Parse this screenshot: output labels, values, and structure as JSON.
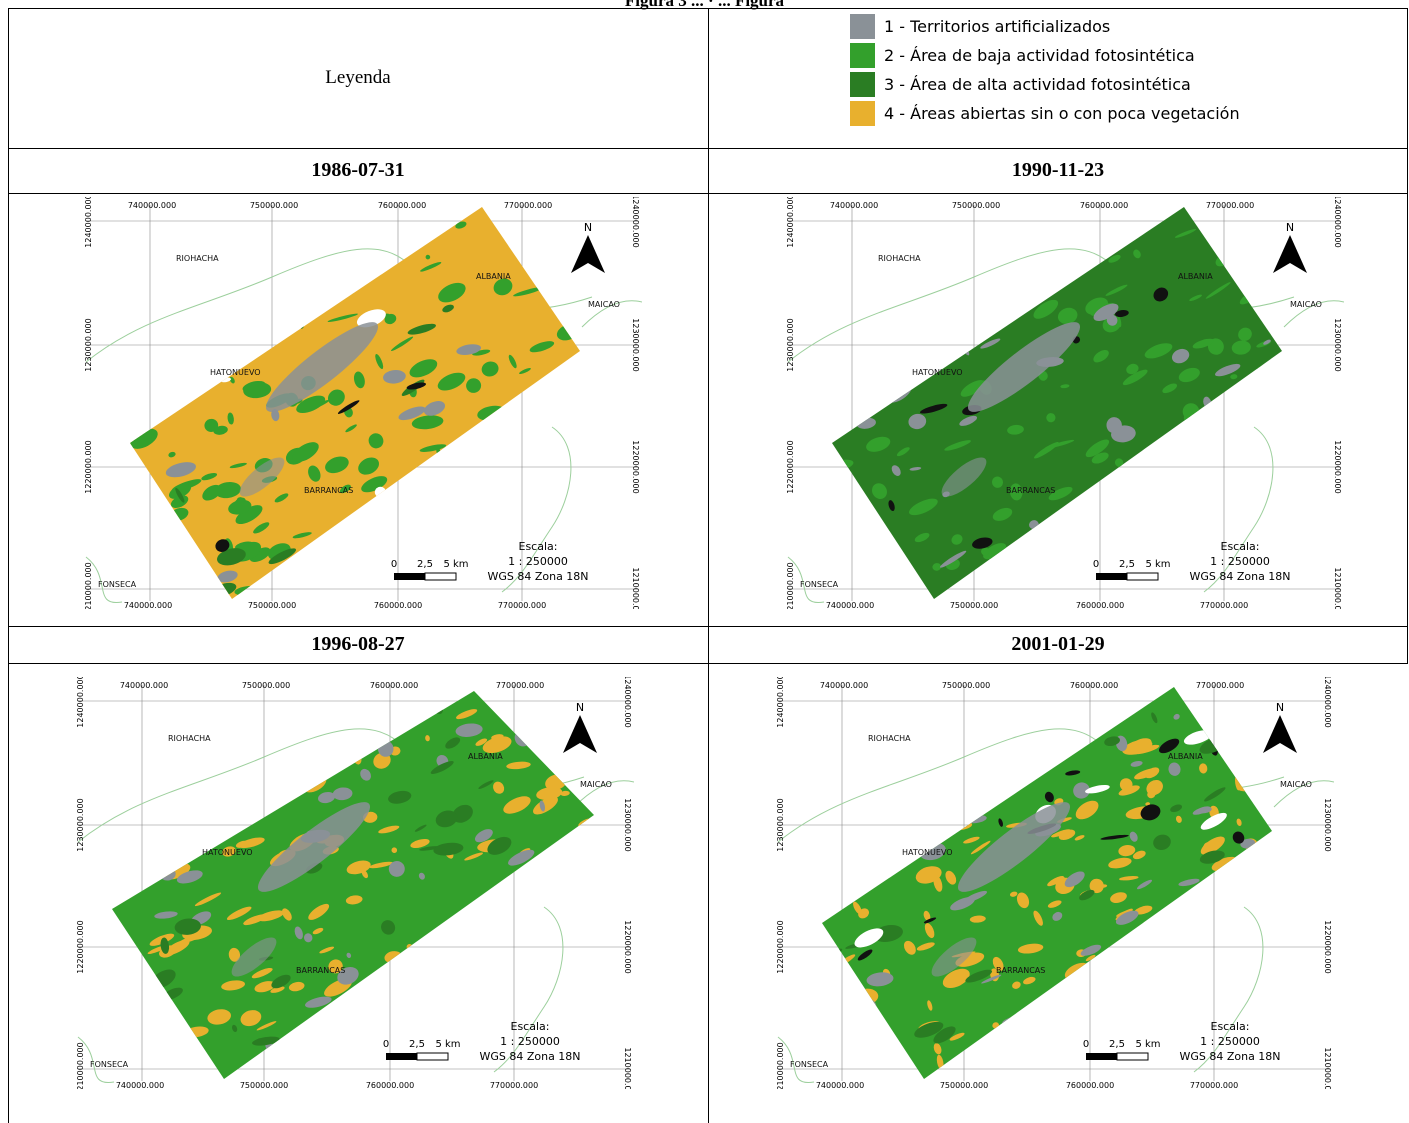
{
  "caption_fragment": "Figura 3 ... · ... Figura",
  "legend": {
    "title": "Leyenda",
    "items": [
      {
        "label": "1 - Territorios artificializados",
        "color": "#8a9197"
      },
      {
        "label": "2 - Área de baja actividad fotosintética",
        "color": "#33a02c"
      },
      {
        "label": "3 - Área de alta actividad fotosintética",
        "color": "#2a7d23"
      },
      {
        "label": "4 - Áreas abiertas sin o con poca vegetación",
        "color": "#e8b02e"
      }
    ]
  },
  "maps": [
    {
      "date": "1986-07-31",
      "dominant": "open"
    },
    {
      "date": "1990-11-23",
      "dominant": "high"
    },
    {
      "date": "1996-08-27",
      "dominant": "low"
    },
    {
      "date": "2001-01-29",
      "dominant": "mixed"
    }
  ],
  "map_labels": {
    "x_ticks": [
      "740000.000",
      "750000.000",
      "760000.000",
      "770000.000"
    ],
    "y_ticks_left": [
      "1240000.000",
      "1230000.000",
      "1220000.000",
      "1210000.000"
    ],
    "y_ticks_right": [
      "1240000.000",
      "1230000.000",
      "1220000.000",
      "1210000.0"
    ],
    "places": [
      "RIOHACHA",
      "ALBANIA",
      "MAICAO",
      "HATONUEVO",
      "BARRANCAS",
      "FONSECA"
    ],
    "north": "N",
    "scalebar": {
      "zero": "0",
      "mid": "2,5",
      "end": "5 km"
    },
    "scale_title": "Escala:",
    "scale_ratio": "1 : 250000",
    "crs": "WGS 84 Zona 18N"
  }
}
